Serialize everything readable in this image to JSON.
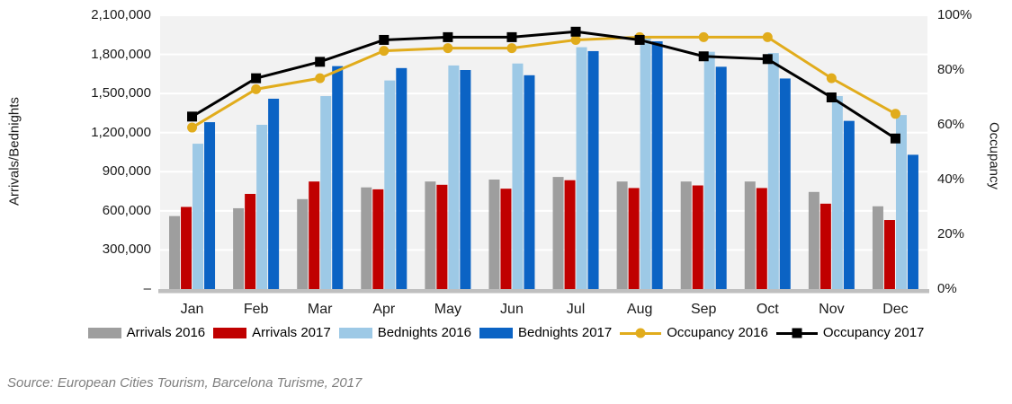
{
  "chart_data": {
    "type": "combo-bar-line",
    "title": "",
    "categories": [
      "Jan",
      "Feb",
      "Mar",
      "Apr",
      "May",
      "Jun",
      "Jul",
      "Aug",
      "Sep",
      "Oct",
      "Nov",
      "Dec"
    ],
    "bar_series": [
      {
        "name": "Arrivals 2016",
        "color": "#9E9E9E",
        "values": [
          560000,
          620000,
          690000,
          780000,
          825000,
          840000,
          860000,
          825000,
          825000,
          825000,
          745000,
          635000
        ]
      },
      {
        "name": "Arrivals 2017",
        "color": "#C00000",
        "values": [
          630000,
          730000,
          825000,
          765000,
          800000,
          770000,
          835000,
          775000,
          795000,
          775000,
          655000,
          530000
        ]
      },
      {
        "name": "Bednights 2016",
        "color": "#9DC9E6",
        "values": [
          1115000,
          1260000,
          1480000,
          1600000,
          1715000,
          1730000,
          1855000,
          1925000,
          1820000,
          1810000,
          1480000,
          1335000
        ]
      },
      {
        "name": "Bednights 2017",
        "color": "#0B63C4",
        "values": [
          1280000,
          1460000,
          1710000,
          1695000,
          1680000,
          1640000,
          1825000,
          1900000,
          1705000,
          1615000,
          1290000,
          1030000
        ]
      }
    ],
    "line_series": [
      {
        "name": "Occupancy 2016",
        "color": "#E1AC1C",
        "marker": "circle",
        "values": [
          59,
          73,
          77,
          87,
          88,
          88,
          91,
          92,
          92,
          92,
          77,
          64
        ]
      },
      {
        "name": "Occupancy 2017",
        "color": "#000000",
        "marker": "square",
        "values": [
          63,
          77,
          83,
          91,
          92,
          92,
          94,
          91,
          85,
          84,
          70,
          55
        ]
      }
    ],
    "left_axis": {
      "label": "Arrivals/Bednights",
      "min": 0,
      "max": 2100000,
      "ticks": [
        "2,100,000",
        "1,800,000",
        "1,500,000",
        "1,200,000",
        "900,000",
        "600,000",
        "300,000",
        "–"
      ]
    },
    "right_axis": {
      "label": "Occupancy",
      "min": 0,
      "max": 100,
      "ticks": [
        "100%",
        "80%",
        "60%",
        "40%",
        "20%",
        "0%"
      ]
    },
    "grid": true,
    "legend_position": "bottom"
  },
  "colors": {
    "plot_background": "#F2F2F2",
    "gridline": "#FFFFFF",
    "baseline": "#BFBFBF",
    "text": "#1a1a1a",
    "source_text": "#7f7f7f"
  },
  "source_note": "Source: European Cities Tourism, Barcelona Turisme, 2017"
}
